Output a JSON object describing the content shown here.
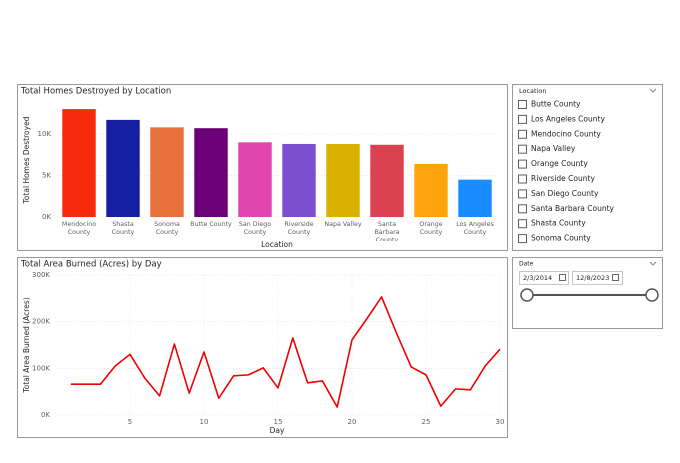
{
  "chart_data": [
    {
      "type": "bar",
      "title": "Total Homes Destroyed by Location",
      "x_label": "Location",
      "y_label": "Total Homes Destroyed",
      "categories": [
        "Mendocino County",
        "Shasta County",
        "Sonoma County",
        "Butte County",
        "San Diego County",
        "Riverside County",
        "Napa Valley",
        "Santa Barbara County",
        "Orange County",
        "Los Angeles County"
      ],
      "values": [
        13000,
        11700,
        10800,
        10700,
        9000,
        8800,
        8800,
        8700,
        6400,
        4500
      ],
      "colors": [
        "#f82a0d",
        "#1420a0",
        "#e8703a",
        "#6c0078",
        "#e045b0",
        "#7b4fce",
        "#dbb100",
        "#d9424e",
        "#fda40f",
        "#1a8cff"
      ],
      "ylim": [
        0,
        14000
      ],
      "yticks": [
        {
          "value": 0,
          "label": "0K"
        },
        {
          "value": 5000,
          "label": "5K"
        },
        {
          "value": 10000,
          "label": "10K"
        }
      ],
      "grid": true
    },
    {
      "type": "line",
      "title": "Total Area Burned (Acres) by Day",
      "x_label": "Day",
      "y_label": "Total Area Burned (Acres)",
      "x": [
        1,
        2,
        3,
        4,
        5,
        6,
        7,
        8,
        9,
        10,
        11,
        12,
        13,
        14,
        15,
        16,
        17,
        18,
        19,
        20,
        21,
        22,
        23,
        24,
        25,
        26,
        27,
        28,
        29,
        30
      ],
      "values": [
        66000,
        66000,
        66000,
        105000,
        130000,
        79000,
        41000,
        152000,
        47000,
        135000,
        36000,
        84000,
        86000,
        101000,
        58000,
        165000,
        69000,
        73000,
        17000,
        161000,
        206000,
        253000,
        176000,
        103000,
        86000,
        19000,
        56000,
        54000,
        105000,
        141000
      ],
      "color": "#f00000",
      "xlim": [
        0,
        30
      ],
      "xticks": [
        5,
        10,
        15,
        20,
        25,
        30
      ],
      "ylim": [
        0,
        300000
      ],
      "yticks": [
        {
          "value": 0,
          "label": "0K"
        },
        {
          "value": 100000,
          "label": "100K"
        },
        {
          "value": 200000,
          "label": "200K"
        },
        {
          "value": 300000,
          "label": "300K"
        }
      ],
      "grid": true
    }
  ],
  "location_slicer": {
    "title": "Location",
    "items": [
      "Butte County",
      "Los Angeles County",
      "Mendocino County",
      "Napa Valley",
      "Orange County",
      "Riverside County",
      "San Diego County",
      "Santa Barbara County",
      "Shasta County",
      "Sonoma County"
    ]
  },
  "date_slicer": {
    "title": "Date",
    "start": "2/3/2014",
    "end": "12/8/2023"
  }
}
